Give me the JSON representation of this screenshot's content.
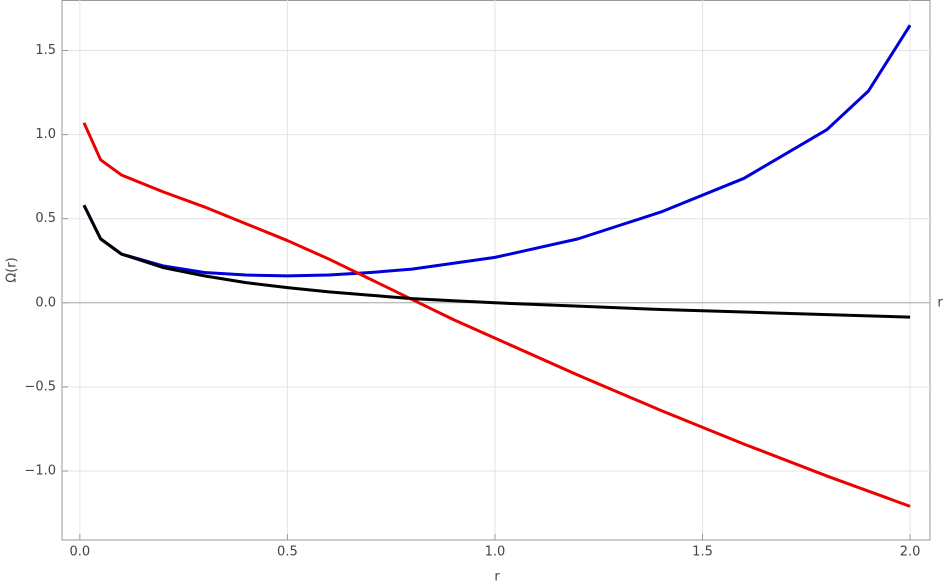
{
  "chart_data": {
    "type": "line",
    "xlabel": "r",
    "ylabel": "Ω(r)",
    "axis_label": "r",
    "x": [
      0.01,
      0.05,
      0.1,
      0.2,
      0.3,
      0.4,
      0.5,
      0.6,
      0.7,
      0.8,
      0.9,
      1.0,
      1.2,
      1.4,
      1.6,
      1.8,
      1.9,
      2.0
    ],
    "series": [
      {
        "color": "#0000dd",
        "values": [
          0.58,
          0.38,
          0.29,
          0.22,
          0.18,
          0.165,
          0.16,
          0.165,
          0.18,
          0.2,
          0.235,
          0.27,
          0.38,
          0.54,
          0.74,
          1.03,
          1.26,
          1.65
        ]
      },
      {
        "color": "#ee0000",
        "values": [
          1.07,
          0.85,
          0.76,
          0.66,
          0.57,
          0.47,
          0.37,
          0.26,
          0.14,
          0.02,
          -0.1,
          -0.21,
          -0.43,
          -0.64,
          -0.84,
          -1.03,
          -1.12,
          -1.21
        ]
      },
      {
        "color": "#000000",
        "values": [
          0.58,
          0.38,
          0.29,
          0.21,
          0.16,
          0.12,
          0.09,
          0.065,
          0.045,
          0.025,
          0.012,
          0.0,
          -0.02,
          -0.04,
          -0.055,
          -0.07,
          -0.078,
          -0.085
        ]
      }
    ],
    "xlim": [
      -0.043,
      2.048
    ],
    "ylim": [
      -1.41,
      1.8
    ],
    "xticks": [
      {
        "value": 0,
        "label": "0.0"
      },
      0.5,
      {
        "value": 1,
        "label": "1.0"
      },
      1.5,
      {
        "value": 2,
        "label": "2.0"
      }
    ],
    "yticks": [
      {
        "value": -1,
        "label": "−1.0"
      },
      {
        "value": -0.5,
        "label": "−0.5"
      },
      {
        "value": 0,
        "label": "0.0"
      },
      0.5,
      {
        "value": 1,
        "label": "1.0"
      },
      1.5
    ],
    "grid": true
  }
}
